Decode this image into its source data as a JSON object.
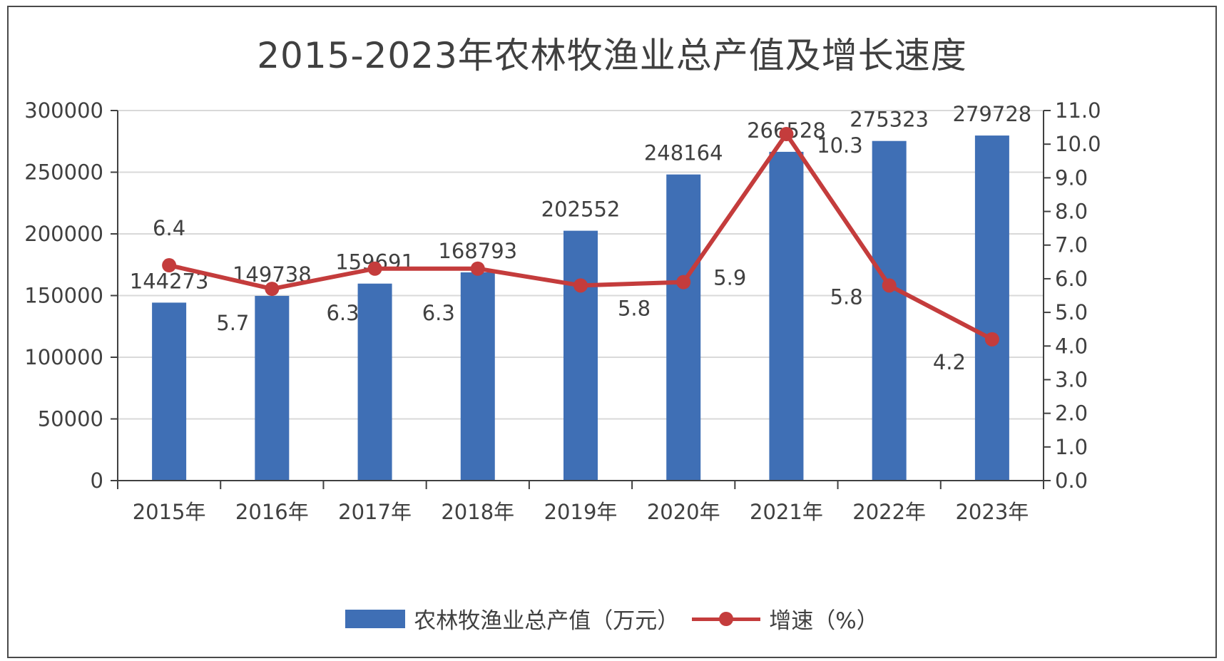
{
  "title": "2015-2023年农林牧渔业总产值及增长速度",
  "colors": {
    "bar": "#3f6fb5",
    "line": "#c43c3c",
    "grid": "#d9d9d9",
    "axis": "#404040",
    "text": "#404040"
  },
  "chart_data": {
    "type": "bar",
    "title": "2015-2023年农林牧渔业总产值及增长速度",
    "categories": [
      "2015年",
      "2016年",
      "2017年",
      "2018年",
      "2019年",
      "2020年",
      "2021年",
      "2022年",
      "2023年"
    ],
    "series": [
      {
        "name": "农林牧渔业总产值（万元）",
        "type": "bar",
        "axis": "left",
        "values": [
          144273,
          149738,
          159691,
          168793,
          202552,
          248164,
          266528,
          275323,
          279728
        ],
        "labels": [
          "144273",
          "149738",
          "159691",
          "168793",
          "202552",
          "248164",
          "266528",
          "275323",
          "279728"
        ]
      },
      {
        "name": "增速（%）",
        "type": "line",
        "axis": "right",
        "values": [
          6.4,
          5.7,
          6.3,
          6.3,
          5.8,
          5.9,
          10.3,
          5.8,
          4.2
        ],
        "labels": [
          "6.4",
          "5.7",
          "6.3",
          "6.3",
          "5.8",
          "5.9",
          "10.3",
          "5.8",
          "4.2"
        ]
      }
    ],
    "y_left": {
      "min": 0,
      "max": 300000,
      "ticks": [
        "0",
        "50000",
        "100000",
        "150000",
        "200000",
        "250000",
        "300000"
      ]
    },
    "y_right": {
      "min": 0,
      "max": 11,
      "ticks": [
        "0.0",
        "1.0",
        "2.0",
        "3.0",
        "4.0",
        "5.0",
        "6.0",
        "7.0",
        "8.0",
        "9.0",
        "10.0",
        "11.0"
      ]
    },
    "grid": true,
    "legend_position": "bottom"
  }
}
